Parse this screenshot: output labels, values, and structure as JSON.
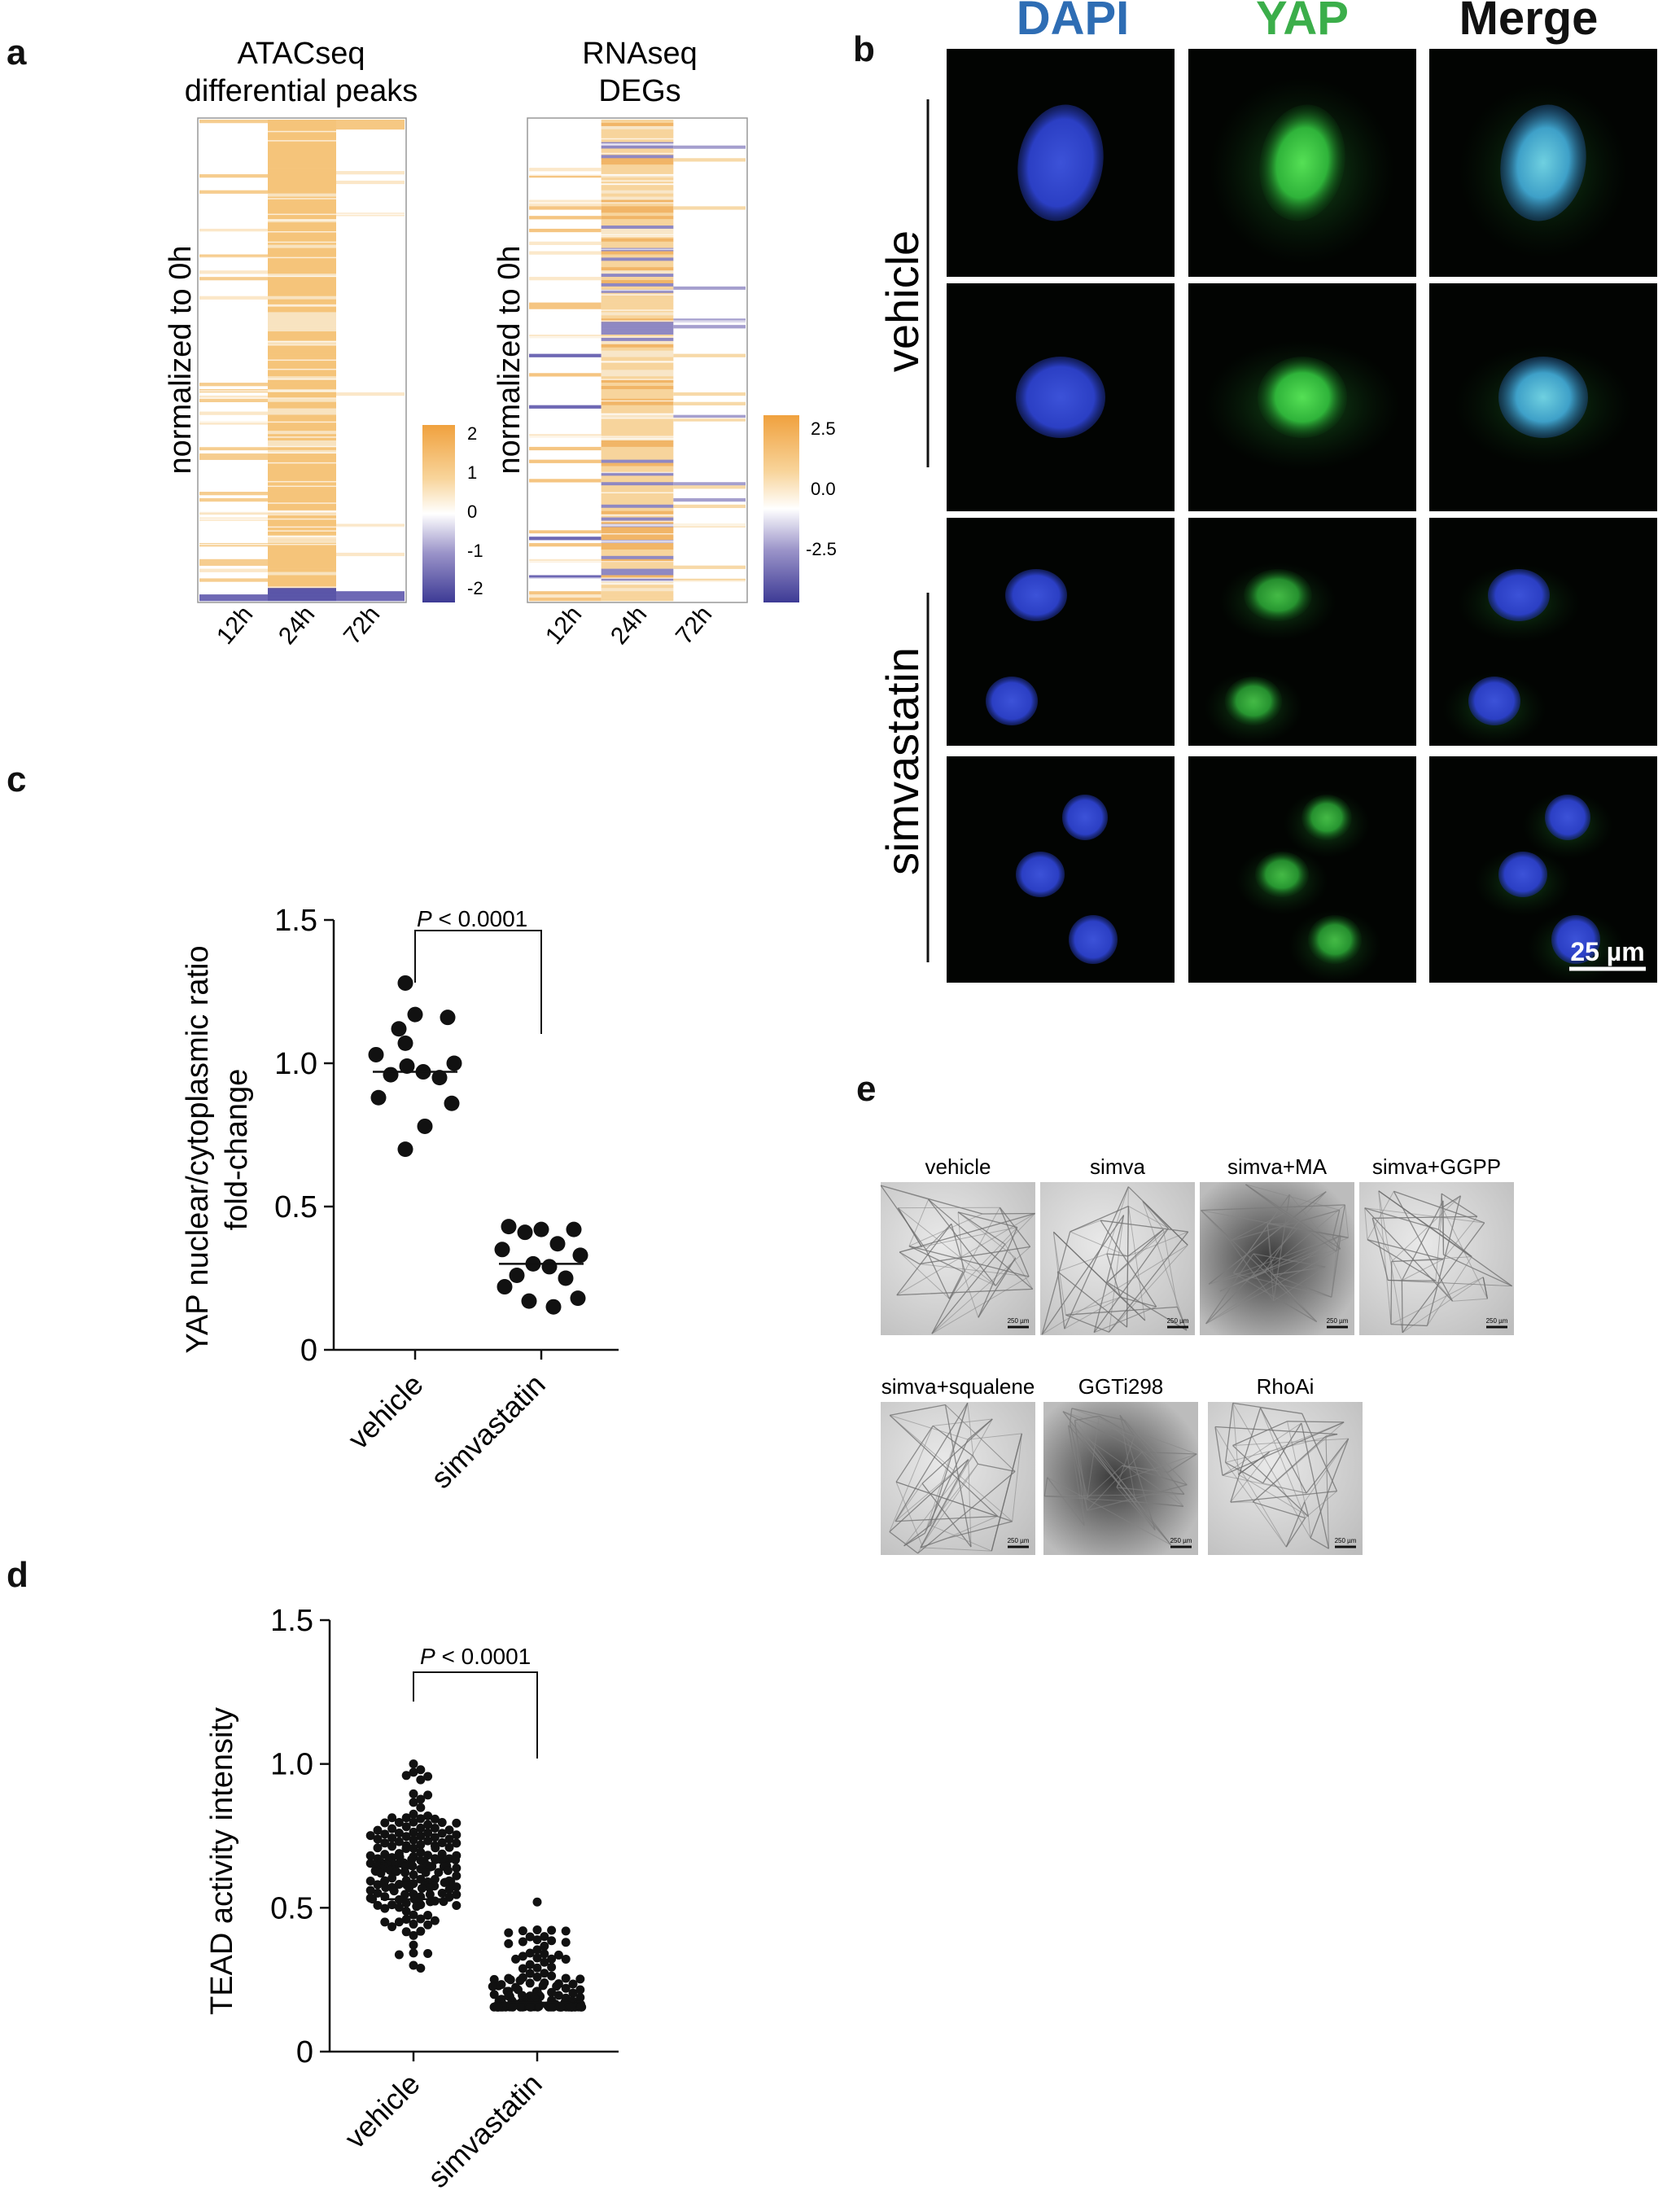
{
  "panels": {
    "a": "a",
    "b": "b",
    "c": "c",
    "d": "d",
    "e": "e"
  },
  "colors": {
    "orange": "#f2b45e",
    "light_orange": "#f8deb0",
    "purple": "#3e3d96",
    "light_purple": "#8c85bf",
    "dapi_blue": "#2e6db4",
    "yap_green": "#3bae4a",
    "merge_black": "#111111"
  },
  "chart_data": [
    {
      "type": "heatmap",
      "id": "atac",
      "title": "ATACseq differential peaks",
      "title_lines": [
        "ATACseq",
        "differential peaks"
      ],
      "ylabel": "normalized to 0h",
      "columns": [
        "12h",
        "24h",
        "72h"
      ],
      "colorbar": {
        "ticks": [
          "2",
          "1",
          "0",
          "-1",
          "-2"
        ],
        "range": [
          -2,
          2
        ]
      }
    },
    {
      "type": "heatmap",
      "id": "rna",
      "title": "RNAseq DEGs",
      "title_lines": [
        "RNAseq",
        "DEGs"
      ],
      "ylabel": "normalized to 0h",
      "columns": [
        "12h",
        "24h",
        "72h"
      ],
      "colorbar": {
        "ticks": [
          "2.5",
          "0.0",
          "-2.5"
        ],
        "range": [
          -2.5,
          2.5
        ]
      }
    },
    {
      "type": "scatter",
      "id": "yap-ratio",
      "ylabel_lines": [
        "YAP nuclear/cytoplasmic  ratio",
        "fold-change"
      ],
      "categories": [
        "vehicle",
        "simvastatin"
      ],
      "yticks": [
        "0",
        "0.5",
        "1.0",
        "1.5"
      ],
      "ylim": [
        0,
        1.5
      ],
      "pvalue": {
        "prefix": "P",
        "text": " < 0.0001"
      },
      "series": [
        {
          "category": "vehicle",
          "median": 0.97,
          "values": [
            1.28,
            1.17,
            1.16,
            1.12,
            1.07,
            1.03,
            1.0,
            0.99,
            0.97,
            0.96,
            0.95,
            0.88,
            0.86,
            0.78,
            0.7
          ]
        },
        {
          "category": "simvastatin",
          "median": 0.3,
          "values": [
            0.43,
            0.42,
            0.42,
            0.41,
            0.37,
            0.35,
            0.33,
            0.3,
            0.29,
            0.26,
            0.25,
            0.22,
            0.18,
            0.17,
            0.15
          ]
        }
      ]
    },
    {
      "type": "scatter",
      "id": "tead-activity",
      "ylabel": "TEAD activity intensity",
      "categories": [
        "vehicle",
        "simvastatin"
      ],
      "yticks": [
        "0",
        "0.5",
        "1.0",
        "1.5"
      ],
      "ylim": [
        0,
        1.5
      ],
      "pvalue": {
        "prefix": "P",
        "text": " < 0.0001"
      },
      "series": [
        {
          "category": "vehicle",
          "n": 180,
          "range": [
            0.29,
            1.0
          ],
          "median": 0.53
        },
        {
          "category": "simvastatin",
          "n": 150,
          "range": [
            0.15,
            0.52
          ],
          "median": 0.17
        }
      ]
    }
  ],
  "microscopy": {
    "columns": [
      "DAPI",
      "YAP",
      "Merge"
    ],
    "groups": [
      "vehicle",
      "simvastatin"
    ],
    "scale_bar": "25 µm"
  },
  "tube_assay": {
    "row1": [
      "vehicle",
      "simva",
      "simva+MA",
      "simva+GGPP"
    ],
    "row2": [
      "simva+squalene",
      "GGTi298",
      "RhoAi"
    ],
    "scale_label": "250 µm"
  }
}
